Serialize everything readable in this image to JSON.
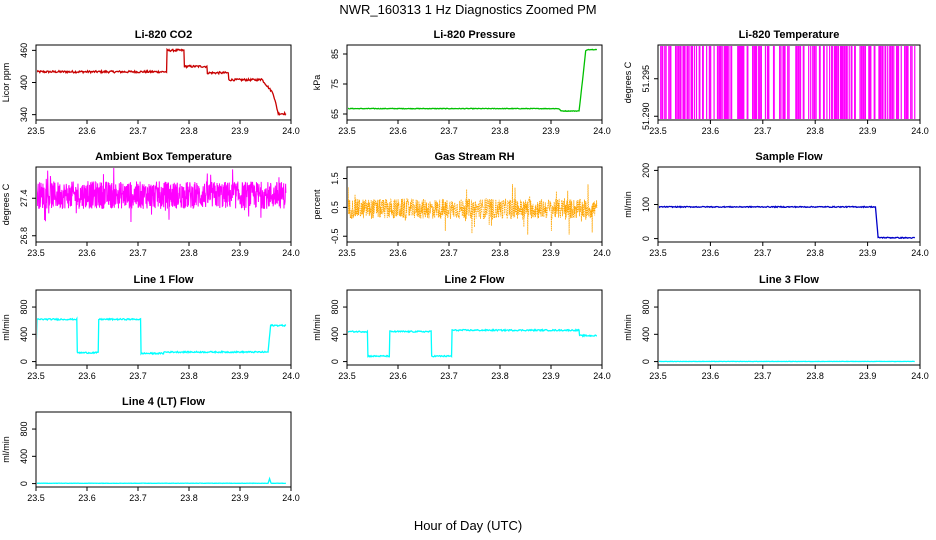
{
  "figure": {
    "title": "NWR_160313  1 Hz Diagnostics Zoomed PM",
    "xlabel": "Hour of Day (UTC)"
  },
  "chart_data": [
    {
      "type": "line",
      "title": "Li-820 CO2",
      "ylabel": "Licor ppm",
      "xlim": [
        23.5,
        24.0
      ],
      "ylim": [
        330,
        470
      ],
      "xticks": [
        "23.5",
        "23.6",
        "23.7",
        "23.8",
        "23.9",
        "24.0"
      ],
      "yticks": [
        "340",
        "400",
        "460"
      ],
      "ytick_values": [
        340,
        400,
        460
      ],
      "series": [
        {
          "color": "#c80000",
          "noise": 2,
          "x": [
            23.5,
            23.756,
            23.757,
            23.79,
            23.791,
            23.835,
            23.836,
            23.877,
            23.878,
            23.94,
            23.941,
            23.965,
            23.975,
            23.99
          ],
          "y": [
            420,
            420,
            460,
            460,
            430,
            430,
            418,
            418,
            405,
            405,
            408,
            380,
            342,
            342
          ]
        }
      ]
    },
    {
      "type": "line",
      "title": "Li-820 Pressure",
      "ylabel": "kPa",
      "xlim": [
        23.5,
        24.0
      ],
      "ylim": [
        63,
        88
      ],
      "xticks": [
        "23.5",
        "23.6",
        "23.7",
        "23.8",
        "23.9",
        "24.0"
      ],
      "yticks": [
        "65",
        "75",
        "85"
      ],
      "ytick_values": [
        65,
        75,
        85
      ],
      "series": [
        {
          "color": "#00c000",
          "noise": 0.1,
          "x": [
            23.5,
            23.915,
            23.92,
            23.955,
            23.963,
            23.968,
            23.972,
            23.99
          ],
          "y": [
            66.8,
            66.8,
            66.0,
            66.0,
            78.0,
            86.0,
            86.5,
            86.5
          ]
        }
      ]
    },
    {
      "type": "line",
      "title": "Li-820 Temperature",
      "ylabel": "degrees C",
      "xlim": [
        23.5,
        24.0
      ],
      "ylim": [
        51.2895,
        51.2995
      ],
      "xticks": [
        "23.5",
        "23.6",
        "23.7",
        "23.8",
        "23.9",
        "24.0"
      ],
      "yticks": [
        "51.290",
        "51.295"
      ],
      "ytick_values": [
        51.29,
        51.295
      ],
      "series": [
        {
          "color": "#ff00ff",
          "style": "flicker",
          "high": 51.2995,
          "low": 51.2895,
          "density": 0.35,
          "x": [
            23.5,
            23.99
          ]
        }
      ]
    },
    {
      "type": "line",
      "title": "Ambient Box Temperature",
      "ylabel": "degrees C",
      "xlim": [
        23.5,
        24.0
      ],
      "ylim": [
        26.7,
        27.9
      ],
      "xticks": [
        "23.5",
        "23.6",
        "23.7",
        "23.8",
        "23.9",
        "24.0"
      ],
      "yticks": [
        "26.8",
        "27.4"
      ],
      "ytick_values": [
        26.8,
        27.4
      ],
      "series": [
        {
          "color": "#ff00ff",
          "style": "noise",
          "x": [
            23.5,
            23.99
          ],
          "center": 27.45,
          "spread": 0.22,
          "spike": 0.45
        }
      ]
    },
    {
      "type": "line",
      "title": "Gas Stream RH",
      "ylabel": "percent",
      "xlim": [
        23.5,
        24.0
      ],
      "ylim": [
        -0.7,
        1.9
      ],
      "xticks": [
        "23.5",
        "23.6",
        "23.7",
        "23.8",
        "23.9",
        "24.0"
      ],
      "yticks": [
        "-0.5",
        "0.5",
        "1.5"
      ],
      "ytick_values": [
        -0.5,
        0.5,
        1.5
      ],
      "series": [
        {
          "color": "#ffa500",
          "style": "noise",
          "points": true,
          "x": [
            23.5,
            23.99
          ],
          "center": 0.45,
          "spread": 0.35,
          "spike": 0.9
        }
      ]
    },
    {
      "type": "line",
      "title": "Sample Flow",
      "ylabel": "ml/min",
      "xlim": [
        23.5,
        24.0
      ],
      "ylim": [
        -10,
        210
      ],
      "xticks": [
        "23.5",
        "23.6",
        "23.7",
        "23.8",
        "23.9",
        "24.0"
      ],
      "yticks": [
        "0",
        "100",
        "200"
      ],
      "ytick_values": [
        0,
        100,
        200
      ],
      "series": [
        {
          "color": "#0000c8",
          "noise": 1.5,
          "x": [
            23.5,
            23.915,
            23.92,
            23.99
          ],
          "y": [
            93,
            93,
            3,
            2
          ]
        }
      ]
    },
    {
      "type": "line",
      "title": "Line 1 Flow",
      "ylabel": "ml/min",
      "xlim": [
        23.5,
        24.0
      ],
      "ylim": [
        -50,
        1050
      ],
      "xticks": [
        "23.5",
        "23.6",
        "23.7",
        "23.8",
        "23.9",
        "24.0"
      ],
      "yticks": [
        "0",
        "400",
        "800"
      ],
      "ytick_values": [
        0,
        400,
        800
      ],
      "series": [
        {
          "color": "#00ffff",
          "noise": 10,
          "x": [
            23.5,
            23.502,
            23.58,
            23.581,
            23.622,
            23.623,
            23.705,
            23.706,
            23.75,
            23.751,
            23.955,
            23.96,
            23.99
          ],
          "y": [
            140,
            620,
            620,
            130,
            130,
            620,
            620,
            120,
            120,
            140,
            140,
            530,
            530
          ]
        }
      ]
    },
    {
      "type": "line",
      "title": "Line 2 Flow",
      "ylabel": "ml/min",
      "xlim": [
        23.5,
        24.0
      ],
      "ylim": [
        -50,
        1050
      ],
      "xticks": [
        "23.5",
        "23.6",
        "23.7",
        "23.8",
        "23.9",
        "24.0"
      ],
      "yticks": [
        "0",
        "400",
        "800"
      ],
      "ytick_values": [
        0,
        400,
        800
      ],
      "series": [
        {
          "color": "#00ffff",
          "noise": 10,
          "x": [
            23.5,
            23.54,
            23.541,
            23.583,
            23.584,
            23.665,
            23.666,
            23.705,
            23.706,
            23.955,
            23.956,
            23.99
          ],
          "y": [
            440,
            440,
            80,
            80,
            440,
            440,
            80,
            80,
            460,
            460,
            380,
            380
          ]
        }
      ]
    },
    {
      "type": "line",
      "title": "Line 3 Flow",
      "ylabel": "ml/min",
      "xlim": [
        23.5,
        24.0
      ],
      "ylim": [
        -50,
        1050
      ],
      "xticks": [
        "23.5",
        "23.6",
        "23.7",
        "23.8",
        "23.9",
        "24.0"
      ],
      "yticks": [
        "0",
        "400",
        "800"
      ],
      "ytick_values": [
        0,
        400,
        800
      ],
      "series": [
        {
          "color": "#00ffff",
          "noise": 2,
          "x": [
            23.5,
            23.99
          ],
          "y": [
            2,
            2
          ]
        }
      ]
    },
    {
      "type": "line",
      "title": "Line 4 (LT) Flow",
      "ylabel": "ml/min",
      "xlim": [
        23.5,
        24.0
      ],
      "ylim": [
        -50,
        1050
      ],
      "xticks": [
        "23.5",
        "23.6",
        "23.7",
        "23.8",
        "23.9",
        "24.0"
      ],
      "yticks": [
        "0",
        "400",
        "800"
      ],
      "ytick_values": [
        0,
        400,
        800
      ],
      "series": [
        {
          "color": "#00ffff",
          "noise": 2,
          "x": [
            23.5,
            23.955,
            23.958,
            23.961,
            23.99
          ],
          "y": [
            5,
            5,
            70,
            5,
            5
          ]
        }
      ]
    }
  ]
}
